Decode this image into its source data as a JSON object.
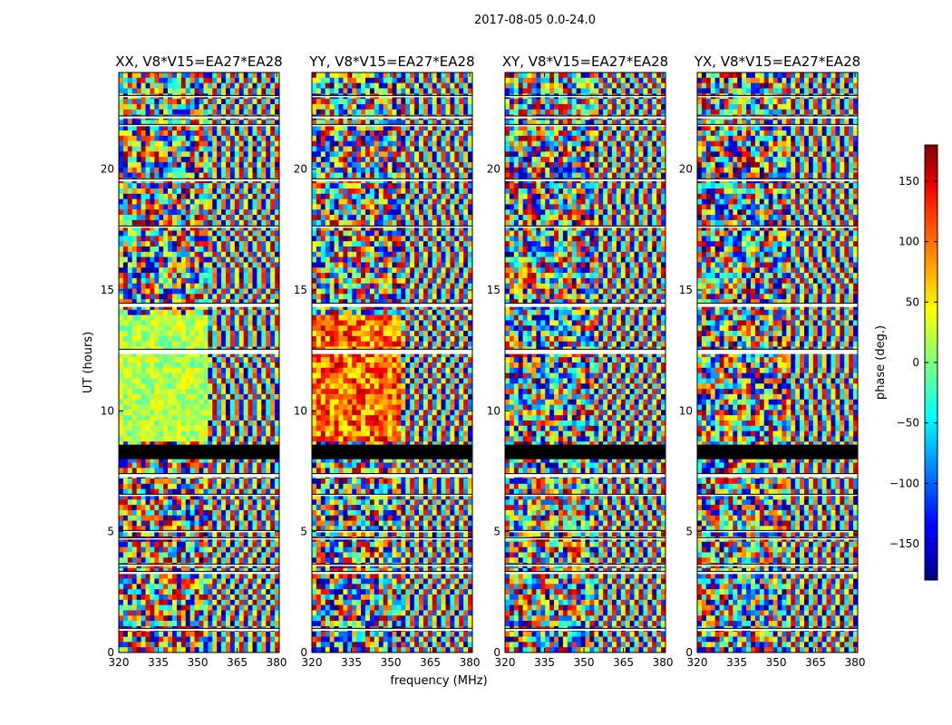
{
  "chart_data": {
    "type": "heatmap",
    "title": "2017-08-05 0.0-24.0",
    "xlabel": "frequency (MHz)",
    "ylabel": "UT (hours)",
    "xlim": [
      320,
      381
    ],
    "ylim": [
      0,
      24
    ],
    "x_ticks": [
      320,
      335,
      350,
      365,
      380
    ],
    "y_ticks": [
      0,
      5,
      10,
      15,
      20
    ],
    "panels": [
      {
        "title": "XX, V8*V15=EA27*EA28",
        "polarization": "XX"
      },
      {
        "title": "YY, V8*V15=EA27*EA28",
        "polarization": "YY"
      },
      {
        "title": "XY, V8*V15=EA27*EA28",
        "polarization": "XY"
      },
      {
        "title": "YX, V8*V15=EA27*EA28",
        "polarization": "YX"
      }
    ],
    "colorbar": {
      "label": "phase (deg.)",
      "range": [
        -180,
        180
      ],
      "ticks": [
        -150,
        -100,
        -50,
        0,
        50,
        100,
        150
      ],
      "tick_labels": [
        "−150",
        "−100",
        "−50",
        "0",
        "50",
        "100",
        "150"
      ],
      "colormap": "jet"
    },
    "flagged_rows_ut_hours": [
      [
        0.9,
        1.0
      ],
      [
        3.25,
        3.35
      ],
      [
        3.6,
        3.65
      ],
      [
        4.7,
        4.75
      ],
      [
        5.0,
        5.05
      ],
      [
        6.5,
        6.55
      ],
      [
        7.25,
        7.4
      ],
      [
        8.0,
        8.6
      ],
      [
        12.35,
        12.55
      ],
      [
        14.3,
        14.45
      ],
      [
        17.6,
        17.65
      ],
      [
        19.5,
        19.6
      ],
      [
        21.8,
        21.85
      ],
      [
        22.1,
        22.2
      ],
      [
        23.0,
        23.05
      ]
    ]
  }
}
